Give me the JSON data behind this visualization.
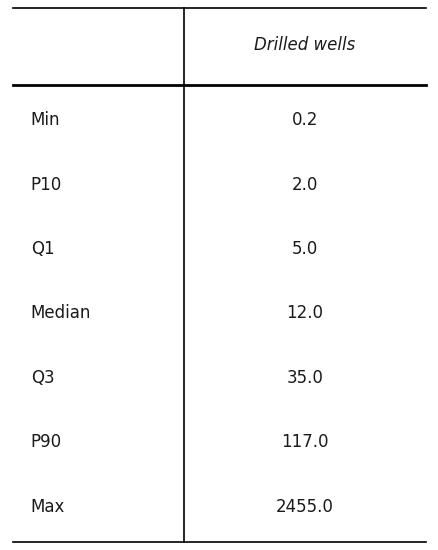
{
  "col_header": "Drilled wells",
  "row_labels": [
    "Min",
    "P10",
    "Q1",
    "Median",
    "Q3",
    "P90",
    "Max"
  ],
  "values": [
    "0.2",
    "2.0",
    "5.0",
    "12.0",
    "35.0",
    "117.0",
    "2455.0"
  ],
  "bg_color": "#ffffff",
  "text_color": "#1a1a1a",
  "header_fontsize": 12,
  "cell_fontsize": 12,
  "fig_width": 4.39,
  "fig_height": 5.5,
  "dpi": 100
}
